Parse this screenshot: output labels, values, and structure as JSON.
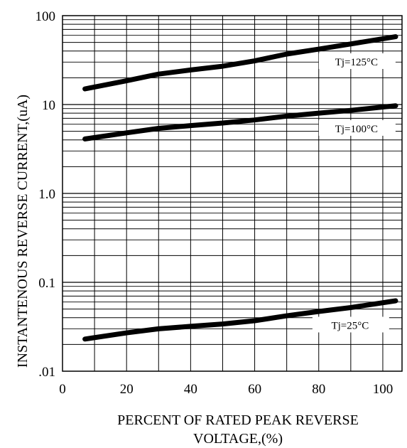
{
  "chart_data": {
    "type": "line",
    "title": "",
    "xlabel": "PERCENT OF RATED PEAK REVERSE VOLTAGE,(%)",
    "xlabel_lines": [
      "PERCENT OF RATED PEAK REVERSE",
      "VOLTAGE,(%)"
    ],
    "ylabel": "INSTANTENOUS REVERSE CURRENT,(uA)",
    "y_scale": "log",
    "xlim": [
      0,
      106
    ],
    "ylim": [
      0.01,
      100
    ],
    "grid": true,
    "x_ticks": [
      0,
      20,
      40,
      60,
      80,
      100
    ],
    "x_tick_labels": [
      "0",
      "20",
      "40",
      "60",
      "80",
      "100"
    ],
    "y_ticks": [
      0.01,
      0.1,
      1,
      10,
      100
    ],
    "y_tick_labels": [
      ".01",
      "0.1",
      "1.0",
      "10",
      "100"
    ],
    "series": [
      {
        "name": "Tj=125°C",
        "x": [
          7,
          20,
          30,
          40,
          50,
          60,
          70,
          80,
          90,
          104
        ],
        "y": [
          15,
          18.5,
          22,
          24.5,
          27,
          31,
          37,
          42,
          48,
          58
        ]
      },
      {
        "name": "Tj=100°C",
        "x": [
          7,
          20,
          30,
          40,
          50,
          60,
          70,
          80,
          90,
          104
        ],
        "y": [
          4.1,
          4.8,
          5.4,
          5.8,
          6.2,
          6.7,
          7.4,
          8.0,
          8.6,
          9.7
        ]
      },
      {
        "name": "Tj=25°C",
        "x": [
          7,
          20,
          30,
          40,
          50,
          60,
          70,
          80,
          90,
          104
        ],
        "y": [
          0.023,
          0.027,
          0.03,
          0.032,
          0.034,
          0.037,
          0.042,
          0.047,
          0.052,
          0.062
        ]
      }
    ]
  },
  "colors": {
    "line": "#000000",
    "grid": "#000000",
    "background": "#ffffff"
  }
}
